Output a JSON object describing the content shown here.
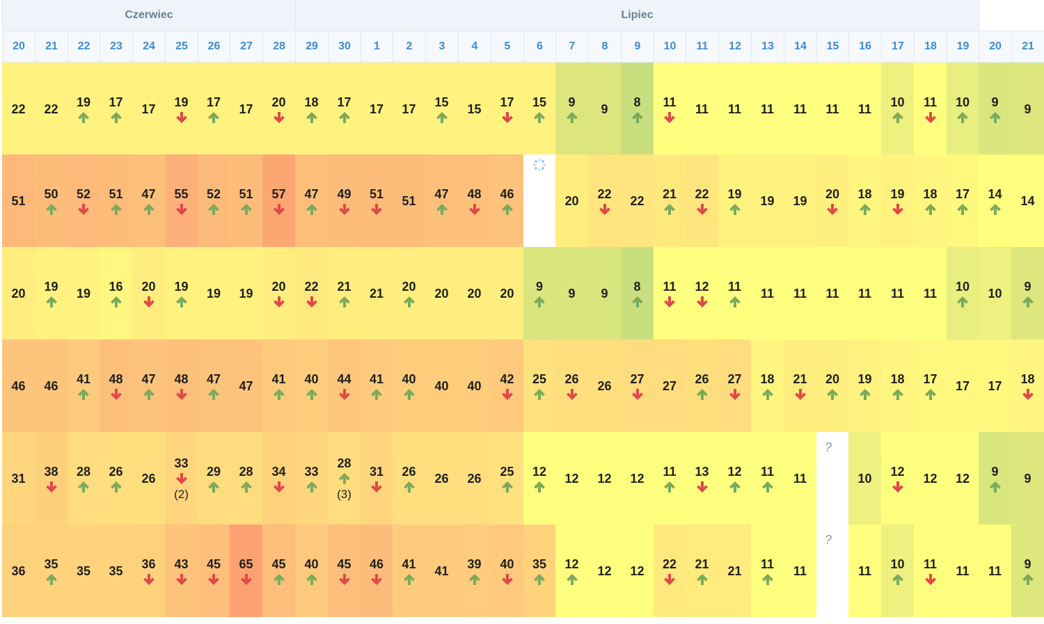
{
  "months": [
    {
      "label": "Czerwiec",
      "span": 9
    },
    {
      "label": "Lipiec",
      "span": 21
    },
    {
      "label": "",
      "span": 2
    }
  ],
  "days": [
    "20",
    "21",
    "22",
    "23",
    "24",
    "25",
    "26",
    "27",
    "28",
    "29",
    "30",
    "1",
    "2",
    "3",
    "4",
    "5",
    "6",
    "7",
    "8",
    "9",
    "10",
    "11",
    "12",
    "13",
    "14",
    "15",
    "16",
    "17",
    "18",
    "19",
    "20",
    "21"
  ],
  "colors": {
    "arrow_up": "#7aaa5c",
    "arrow_down": "#e04848",
    "header_text": "#3d8bd1",
    "month_text": "#6c7f91"
  },
  "rows": [
    [
      "22",
      "22",
      "19^",
      "17^",
      "17",
      "19v",
      "17^",
      "17",
      "20v",
      "18^",
      "17^",
      "17",
      "17",
      "15^",
      "15",
      "17v",
      "15^",
      "9^",
      "9",
      "8^",
      "11v",
      "11",
      "11",
      "11",
      "11",
      "11",
      "11",
      "10^",
      "11v",
      "10^",
      "9^",
      "9"
    ],
    [
      "51",
      "50^",
      "52v",
      "51^",
      "47^",
      "55v",
      "52^",
      "51^",
      "57v",
      "47^",
      "49v",
      "51v",
      "51",
      "47^",
      "48v",
      "46^",
      "*",
      "20",
      "22v",
      "22",
      "21^",
      "22v",
      "19^",
      "19",
      "19",
      "20v",
      "18^",
      "19v",
      "18^",
      "17^",
      "14^",
      "14"
    ],
    [
      "20",
      "19^",
      "19",
      "16^",
      "20v",
      "19^",
      "19",
      "19",
      "20v",
      "22v",
      "21^",
      "21",
      "20^",
      "20",
      "20",
      "20",
      "9^",
      "9",
      "9",
      "8^",
      "11v",
      "12v",
      "11^",
      "11",
      "11",
      "11",
      "11",
      "11",
      "11",
      "10^",
      "10",
      "9^"
    ],
    [
      "46",
      "46",
      "41^",
      "48v",
      "47^",
      "48v",
      "47^",
      "47",
      "41^",
      "40^",
      "44v",
      "41^",
      "40^",
      "40",
      "40",
      "42v",
      "25^",
      "26v",
      "26",
      "27v",
      "27",
      "26^",
      "27v",
      "18^",
      "21v",
      "20^",
      "19^",
      "18^",
      "17^",
      "17",
      "17",
      "18v"
    ],
    [
      "31",
      "38v",
      "28^",
      "26^",
      "26",
      "33v(2)",
      "29^",
      "28^",
      "34v",
      "33^",
      "28^(3)",
      "31v",
      "26^",
      "26",
      "26",
      "25^",
      "12^",
      "12",
      "12",
      "12",
      "11^",
      "13v",
      "12^",
      "11^",
      "11",
      "?",
      "10",
      "12v",
      "12",
      "12",
      "9^",
      "9"
    ],
    [
      "36",
      "35^",
      "35",
      "35",
      "36v",
      "43v",
      "45v",
      "65v",
      "45^",
      "40^",
      "45v",
      "46v",
      "41^",
      "41",
      "39^",
      "40v",
      "35^",
      "12^",
      "12",
      "12",
      "22v",
      "21^",
      "21",
      "11^",
      "11",
      "?",
      "11",
      "10^",
      "11v",
      "11",
      "11",
      "9^"
    ]
  ],
  "row_colors": [
    [
      "#fff27f",
      "#fff27f",
      "#fff27f",
      "#fff27f",
      "#fff27f",
      "#fff27f",
      "#fff27f",
      "#fff27f",
      "#fff27f",
      "#fff27f",
      "#fff27f",
      "#fff27f",
      "#fff27f",
      "#fff27f",
      "#fff27f",
      "#fff27f",
      "#fff27f",
      "#dde57e",
      "#dde57e",
      "#c9df7f",
      "#ffff7f",
      "#ffff7f",
      "#ffff7f",
      "#ffff7f",
      "#ffff7f",
      "#ffff7f",
      "#ffff7f",
      "#eef07f",
      "#ffff7f",
      "#e8ee7f",
      "#d9e67e",
      "#dde77e"
    ],
    [
      "#fdb87a",
      "#fdbd7a",
      "#fdba7a",
      "#fdbc7a",
      "#fdc07b",
      "#fdb079",
      "#fdba7a",
      "#fdbc7a",
      "#fca772",
      "#fdc07b",
      "#fdbd7a",
      "#fdbc7a",
      "#fdbc7a",
      "#fdc07b",
      "#fdc07b",
      "#fdc27b",
      "#ffffff",
      "#ffed7e",
      "#ffe57e",
      "#ffe57e",
      "#ffe97e",
      "#ffe57e",
      "#fff27f",
      "#fff27f",
      "#fff27f",
      "#ffef7e",
      "#fff57f",
      "#fff27f",
      "#fff57f",
      "#fff87f",
      "#ffff7f",
      "#ffff7f"
    ],
    [
      "#ffee7f",
      "#fff27f",
      "#fff27f",
      "#fff77f",
      "#ffee7f",
      "#fff27f",
      "#fff27f",
      "#fff27f",
      "#ffee7f",
      "#ffe97e",
      "#ffed7e",
      "#ffed7e",
      "#ffee7f",
      "#ffee7f",
      "#ffee7f",
      "#ffee7f",
      "#d9e67e",
      "#d9e67e",
      "#d9e67e",
      "#c9df7f",
      "#ffff7f",
      "#ffff7f",
      "#ffff7f",
      "#ffff7f",
      "#ffff7f",
      "#ffff7f",
      "#ffff7f",
      "#ffff7f",
      "#ffff7f",
      "#e8ee7f",
      "#eef07f",
      "#dde77e"
    ],
    [
      "#fdc47b",
      "#fdc47b",
      "#fecb7c",
      "#fdc07b",
      "#fdc27b",
      "#fdc07b",
      "#fdc27b",
      "#fdc27b",
      "#fecb7c",
      "#fecd7c",
      "#fec67b",
      "#fecb7c",
      "#fecd7c",
      "#fecd7c",
      "#fecd7c",
      "#fec97c",
      "#ffe17e",
      "#ffdf7d",
      "#ffdf7d",
      "#ffdc7d",
      "#ffdc7d",
      "#ffdf7d",
      "#ffdc7d",
      "#fff57f",
      "#ffed7e",
      "#ffef7e",
      "#fff27f",
      "#fff57f",
      "#fff87f",
      "#fff87f",
      "#fff87f",
      "#fff57f"
    ],
    [
      "#ffd67d",
      "#fed07c",
      "#ffdc7d",
      "#ffdf7d",
      "#ffdf7d",
      "#ffd57d",
      "#ffdc7d",
      "#ffdc7d",
      "#fed17c",
      "#ffd67d",
      "#ffdc7d",
      "#ffd67d",
      "#ffdf7d",
      "#ffdf7d",
      "#ffdf7d",
      "#ffe17e",
      "#ffff7f",
      "#ffff7f",
      "#ffff7f",
      "#ffff7f",
      "#ffff7f",
      "#ffff7f",
      "#ffff7f",
      "#ffff7f",
      "#ffff7f",
      "#ffffff",
      "#eef07f",
      "#ffff7f",
      "#ffff7f",
      "#ffff7f",
      "#d9e67e",
      "#dde77e"
    ],
    [
      "#fed17c",
      "#fed37c",
      "#fed37c",
      "#fed37c",
      "#fed17c",
      "#fec37b",
      "#fdbf7b",
      "#fca172",
      "#fdbf7b",
      "#fec97c",
      "#fdbf7b",
      "#fdbd7a",
      "#fecb7c",
      "#fecb7c",
      "#fecc7c",
      "#fec97c",
      "#fed37c",
      "#ffff7f",
      "#ffff7f",
      "#ffff7f",
      "#ffe97e",
      "#ffeb7e",
      "#ffeb7e",
      "#ffff7f",
      "#ffff7f",
      "#ffffff",
      "#ffff7f",
      "#eef07f",
      "#ffff7f",
      "#ffff7f",
      "#ffff7f",
      "#dde77e"
    ]
  ]
}
